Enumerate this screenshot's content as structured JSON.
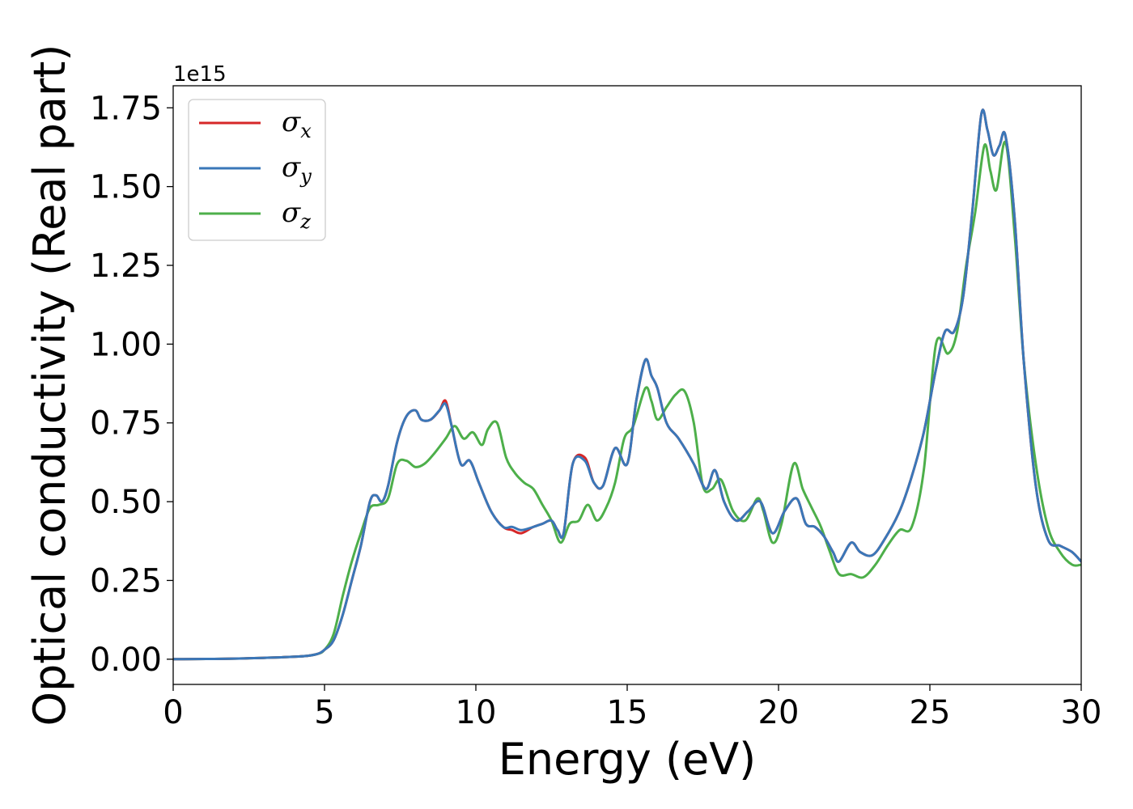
{
  "chart_data": {
    "type": "line",
    "xlabel": "Energy (eV)",
    "ylabel": "Optical conductivity (Real part)",
    "y_offset_label": "1e15",
    "xlim": [
      0,
      30
    ],
    "ylim": [
      -0.08,
      1.82
    ],
    "xticks": [
      0,
      5,
      10,
      15,
      20,
      25,
      30
    ],
    "xtick_labels": [
      "0",
      "5",
      "10",
      "15",
      "20",
      "25",
      "30"
    ],
    "yticks": [
      0.0,
      0.25,
      0.5,
      0.75,
      1.0,
      1.25,
      1.5,
      1.75
    ],
    "ytick_labels": [
      "0.00",
      "0.25",
      "0.50",
      "0.75",
      "1.00",
      "1.25",
      "1.50",
      "1.75"
    ],
    "grid": false,
    "legend": "upper-left",
    "series": [
      {
        "name": "σx",
        "symbol": "σ",
        "subscript": "x",
        "color": "#d62728",
        "x": [
          0,
          2,
          4,
          4.7,
          5,
          5.3,
          5.6,
          5.9,
          6.2,
          6.5,
          6.7,
          6.9,
          7.1,
          7.4,
          7.7,
          8.0,
          8.2,
          8.5,
          8.8,
          9.0,
          9.2,
          9.5,
          9.8,
          10.1,
          10.5,
          10.9,
          11.2,
          11.5,
          11.9,
          12.2,
          12.5,
          12.7,
          12.9,
          13.2,
          13.6,
          13.9,
          14.2,
          14.6,
          15.0,
          15.3,
          15.6,
          15.8,
          16.0,
          16.3,
          16.7,
          17.2,
          17.6,
          17.9,
          18.2,
          18.6,
          19.0,
          19.4,
          19.8,
          20.2,
          20.6,
          20.9,
          21.2,
          21.5,
          21.8,
          22.0,
          22.4,
          22.7,
          23.1,
          23.5,
          24.0,
          24.4,
          24.8,
          25.2,
          25.5,
          25.8,
          26.1,
          26.4,
          26.7,
          26.9,
          27.1,
          27.3,
          27.5,
          27.8,
          28.1,
          28.5,
          28.9,
          29.3,
          29.7,
          30.0
        ],
        "y": [
          0.0,
          0.002,
          0.008,
          0.015,
          0.03,
          0.06,
          0.14,
          0.25,
          0.36,
          0.5,
          0.52,
          0.5,
          0.55,
          0.69,
          0.77,
          0.79,
          0.76,
          0.76,
          0.79,
          0.82,
          0.74,
          0.62,
          0.63,
          0.56,
          0.47,
          0.42,
          0.41,
          0.4,
          0.42,
          0.43,
          0.44,
          0.41,
          0.4,
          0.62,
          0.64,
          0.56,
          0.55,
          0.67,
          0.62,
          0.82,
          0.95,
          0.9,
          0.86,
          0.75,
          0.7,
          0.62,
          0.54,
          0.6,
          0.5,
          0.44,
          0.47,
          0.5,
          0.4,
          0.47,
          0.51,
          0.43,
          0.42,
          0.39,
          0.34,
          0.31,
          0.37,
          0.34,
          0.33,
          0.38,
          0.47,
          0.58,
          0.72,
          0.92,
          1.04,
          1.04,
          1.15,
          1.42,
          1.73,
          1.68,
          1.6,
          1.63,
          1.66,
          1.4,
          0.95,
          0.55,
          0.38,
          0.36,
          0.34,
          0.31
        ]
      },
      {
        "name": "σy",
        "symbol": "σ",
        "subscript": "y",
        "color": "#3a77b8",
        "x": [
          0,
          2,
          4,
          4.7,
          5,
          5.3,
          5.6,
          5.9,
          6.2,
          6.5,
          6.7,
          6.9,
          7.1,
          7.4,
          7.7,
          8.0,
          8.2,
          8.5,
          8.8,
          9.0,
          9.2,
          9.5,
          9.8,
          10.1,
          10.5,
          10.9,
          11.2,
          11.5,
          11.9,
          12.2,
          12.5,
          12.7,
          12.9,
          13.2,
          13.6,
          13.9,
          14.2,
          14.6,
          15.0,
          15.3,
          15.6,
          15.8,
          16.0,
          16.3,
          16.7,
          17.2,
          17.6,
          17.9,
          18.2,
          18.6,
          19.0,
          19.4,
          19.8,
          20.2,
          20.6,
          20.9,
          21.2,
          21.5,
          21.8,
          22.0,
          22.4,
          22.7,
          23.1,
          23.5,
          24.0,
          24.4,
          24.8,
          25.2,
          25.5,
          25.8,
          26.1,
          26.4,
          26.7,
          26.9,
          27.1,
          27.3,
          27.5,
          27.8,
          28.1,
          28.5,
          28.9,
          29.3,
          29.7,
          30.0
        ],
        "y": [
          0.0,
          0.002,
          0.008,
          0.015,
          0.03,
          0.06,
          0.14,
          0.25,
          0.36,
          0.5,
          0.52,
          0.5,
          0.55,
          0.69,
          0.77,
          0.79,
          0.76,
          0.76,
          0.79,
          0.81,
          0.74,
          0.62,
          0.63,
          0.56,
          0.47,
          0.42,
          0.42,
          0.41,
          0.42,
          0.43,
          0.44,
          0.41,
          0.4,
          0.62,
          0.63,
          0.56,
          0.55,
          0.67,
          0.62,
          0.82,
          0.95,
          0.9,
          0.86,
          0.75,
          0.7,
          0.62,
          0.54,
          0.6,
          0.5,
          0.44,
          0.47,
          0.5,
          0.4,
          0.47,
          0.51,
          0.43,
          0.42,
          0.39,
          0.34,
          0.31,
          0.37,
          0.34,
          0.33,
          0.38,
          0.47,
          0.58,
          0.72,
          0.92,
          1.04,
          1.04,
          1.15,
          1.42,
          1.73,
          1.68,
          1.6,
          1.63,
          1.66,
          1.4,
          0.95,
          0.55,
          0.38,
          0.36,
          0.34,
          0.31
        ]
      },
      {
        "name": "σz",
        "symbol": "σ",
        "subscript": "z",
        "color": "#4daf4a",
        "x": [
          0,
          2,
          4,
          4.7,
          5,
          5.3,
          5.6,
          5.9,
          6.2,
          6.5,
          6.8,
          7.1,
          7.4,
          7.7,
          8.0,
          8.3,
          8.6,
          9.0,
          9.3,
          9.6,
          9.9,
          10.2,
          10.4,
          10.7,
          11.0,
          11.3,
          11.6,
          11.9,
          12.2,
          12.5,
          12.8,
          13.1,
          13.4,
          13.7,
          14.0,
          14.3,
          14.6,
          14.9,
          15.2,
          15.6,
          15.8,
          16.0,
          16.3,
          16.6,
          16.9,
          17.2,
          17.5,
          17.8,
          18.1,
          18.5,
          18.9,
          19.3,
          19.5,
          19.8,
          20.1,
          20.5,
          20.8,
          21.1,
          21.4,
          21.7,
          22.0,
          22.4,
          22.8,
          23.2,
          23.6,
          24.0,
          24.4,
          24.8,
          25.2,
          25.6,
          25.9,
          26.2,
          26.5,
          26.8,
          27.0,
          27.2,
          27.5,
          27.8,
          28.1,
          28.5,
          28.9,
          29.3,
          29.7,
          30.0
        ],
        "y": [
          0.0,
          0.002,
          0.008,
          0.015,
          0.03,
          0.08,
          0.2,
          0.31,
          0.4,
          0.48,
          0.49,
          0.51,
          0.62,
          0.63,
          0.61,
          0.62,
          0.65,
          0.7,
          0.74,
          0.7,
          0.72,
          0.68,
          0.73,
          0.75,
          0.64,
          0.59,
          0.56,
          0.54,
          0.49,
          0.44,
          0.37,
          0.43,
          0.44,
          0.49,
          0.44,
          0.48,
          0.56,
          0.7,
          0.74,
          0.86,
          0.82,
          0.76,
          0.8,
          0.84,
          0.85,
          0.75,
          0.55,
          0.54,
          0.57,
          0.47,
          0.44,
          0.51,
          0.47,
          0.37,
          0.43,
          0.62,
          0.54,
          0.48,
          0.42,
          0.34,
          0.27,
          0.27,
          0.26,
          0.3,
          0.36,
          0.41,
          0.42,
          0.6,
          1.0,
          0.97,
          1.04,
          1.25,
          1.42,
          1.63,
          1.55,
          1.49,
          1.64,
          1.35,
          0.95,
          0.62,
          0.42,
          0.34,
          0.3,
          0.3
        ]
      }
    ]
  }
}
